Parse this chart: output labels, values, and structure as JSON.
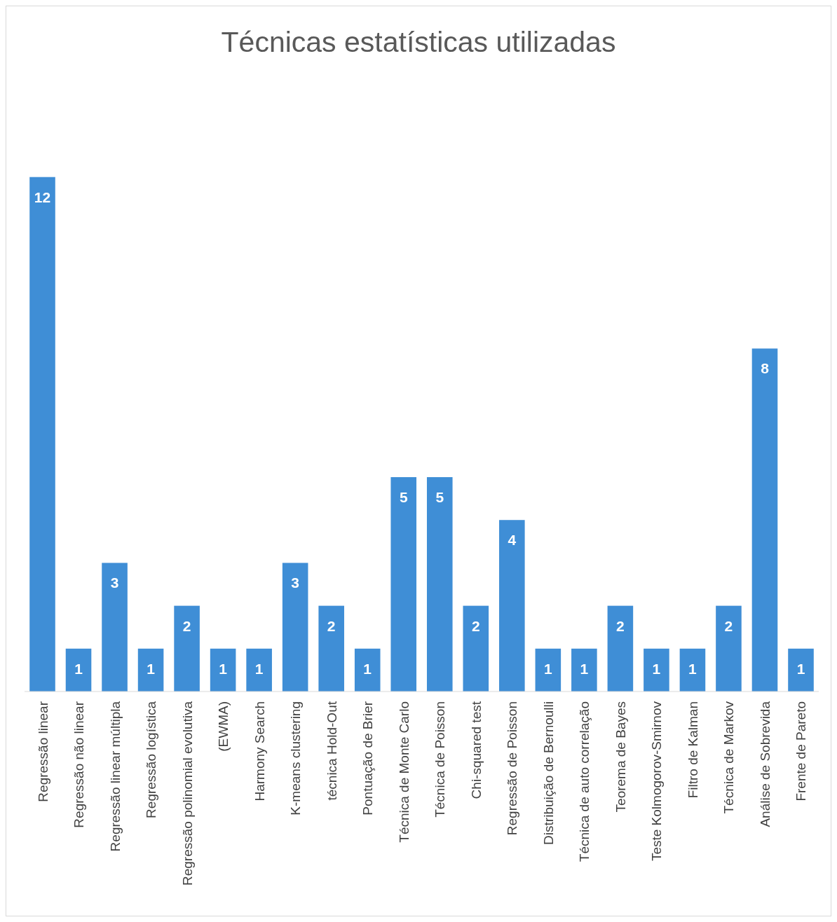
{
  "chart_data": {
    "type": "bar",
    "title": "Técnicas estatísticas utilizadas",
    "categories": [
      "Regressão linear",
      "Regressão não linear",
      "Regressão linear múltipla",
      "Regressão logística",
      "Regressão polinomial evolutiva",
      "(EWMA)",
      "Harmony Search",
      "K-means clustering",
      "técnica Hold-Out",
      "Pontuação de Brier",
      "Técnica de Monte Carlo",
      "Técnica de Poisson",
      "Chi-squared test",
      "Regressão de Poisson",
      "Distribuição de Bernoulli",
      "Técnica de auto correlação",
      "Teorema de Bayes",
      "Teste Kolmogorov-Smirnov",
      "Filtro de Kalman",
      "Técnica de Markov",
      "Análise de Sobrevida",
      "Frente de Pareto"
    ],
    "values": [
      12,
      1,
      3,
      1,
      2,
      1,
      1,
      3,
      2,
      1,
      5,
      5,
      2,
      4,
      1,
      1,
      2,
      1,
      1,
      2,
      8,
      1
    ],
    "color": "#3f8ed6",
    "data_labels": true
  }
}
